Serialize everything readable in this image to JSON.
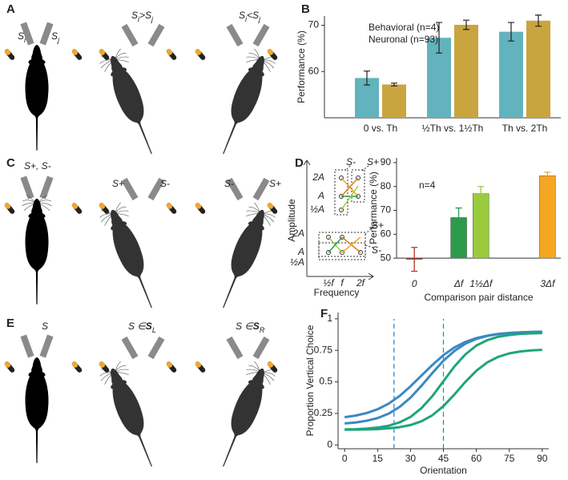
{
  "panel_labels": [
    "A",
    "B",
    "C",
    "D",
    "E",
    "F"
  ],
  "diagram_labels": [
    [
      {
        "text": "S"
      },
      {
        "text": "i",
        "sub": true
      }
    ],
    [
      {
        "text": "S"
      },
      {
        "text": "j",
        "sub": true
      }
    ],
    [
      {
        "text": "S"
      },
      {
        "text": "i",
        "sub": true
      },
      {
        "text": ">S"
      },
      {
        "text": "j",
        "sub": true
      }
    ],
    [
      {
        "text": "S"
      },
      {
        "text": "i",
        "sub": true
      },
      {
        "text": "<S"
      },
      {
        "text": "j",
        "sub": true
      }
    ],
    [
      {
        "text": "S+, S-"
      }
    ],
    [
      {
        "text": "S+"
      }
    ],
    [
      {
        "text": "S-"
      }
    ],
    [
      {
        "text": "S-"
      }
    ],
    [
      {
        "text": "S+"
      }
    ],
    [
      {
        "text": "S"
      }
    ],
    [
      {
        "text": "S ∈"
      },
      {
        "text": "S",
        "bold": true
      },
      {
        "text": "L",
        "sub": true
      }
    ],
    [
      {
        "text": "S ∈"
      },
      {
        "text": "S",
        "bold": true
      },
      {
        "text": "R",
        "sub": true
      }
    ]
  ],
  "schematic": {
    "y_label": "Amplitude",
    "x_label": "Frequency",
    "y_ticks_top": [
      "2A",
      "A",
      "½A"
    ],
    "y_ticks_bottom": [
      "2A",
      "A",
      "½A"
    ],
    "x_ticks": [
      "½f",
      "f",
      "2f"
    ],
    "top_labels": [
      "S-",
      "S+"
    ],
    "bottom_labels": [
      "S+",
      "S-"
    ]
  },
  "chart_data": [
    {
      "type": "bar",
      "y_label": "Performance (%)",
      "categories": [
        "0 vs. Th",
        "½Th vs. 1½Th",
        "Th vs. 2Th"
      ],
      "series": [
        {
          "name": "Behavioral (n=4)",
          "color": "#62b3bd",
          "values": [
            58.6,
            67.3,
            68.6
          ],
          "errors": [
            1.5,
            3.3,
            2.0
          ]
        },
        {
          "name": "Neuronal (n=93)",
          "color": "#c9a53f",
          "values": [
            57.2,
            70.1,
            71.0
          ],
          "errors": [
            0.3,
            1.0,
            1.2
          ]
        }
      ],
      "ylim": [
        50,
        72
      ],
      "yticks": [
        60,
        70
      ]
    },
    {
      "type": "bar",
      "y_label": "Performance (%)",
      "x_label": "Comparison pair distance",
      "annotation": "n=4",
      "x": [
        0,
        1,
        1.5,
        3
      ],
      "values": [
        49.5,
        67,
        77,
        84.5
      ],
      "errors": [
        5,
        4,
        3,
        1.5
      ],
      "colors": [
        "#b5342b",
        "#2e9a4c",
        "#9acb3d",
        "#f5a623"
      ],
      "bar_base": 50,
      "xlim": [
        -0.4,
        3.3
      ],
      "xticks": [
        0,
        {
          "value": 1,
          "label": "Δf"
        },
        {
          "value": 1.5,
          "label": "1½Δf"
        },
        {
          "value": 3,
          "label": "3Δf"
        }
      ],
      "ylim": [
        44,
        92
      ],
      "yticks": [
        50,
        60,
        70,
        80,
        90
      ]
    },
    {
      "type": "line",
      "y_label": "Proportion Vertical Choice",
      "x_label": "Orientation",
      "x": [
        0,
        5,
        10,
        15,
        20,
        25,
        30,
        35,
        40,
        45,
        50,
        55,
        60,
        65,
        70,
        75,
        80,
        85,
        90
      ],
      "series": [
        {
          "color": "#3b88c2",
          "values": [
            0.22,
            0.233,
            0.253,
            0.283,
            0.327,
            0.388,
            0.465,
            0.55,
            0.635,
            0.712,
            0.773,
            0.817,
            0.847,
            0.867,
            0.88,
            0.887,
            0.892,
            0.895,
            0.897
          ]
        },
        {
          "color": "#3b88c2",
          "values": [
            0.171,
            0.178,
            0.192,
            0.213,
            0.248,
            0.301,
            0.375,
            0.469,
            0.571,
            0.668,
            0.745,
            0.803,
            0.841,
            0.865,
            0.879,
            0.888,
            0.893,
            0.896,
            0.898
          ]
        },
        {
          "color": "#1ea57b",
          "values": [
            0.123,
            0.125,
            0.13,
            0.138,
            0.152,
            0.179,
            0.222,
            0.292,
            0.388,
            0.505,
            0.622,
            0.718,
            0.788,
            0.831,
            0.858,
            0.872,
            0.881,
            0.885,
            0.887
          ]
        },
        {
          "color": "#1ea57b",
          "values": [
            0.121,
            0.122,
            0.123,
            0.126,
            0.132,
            0.141,
            0.158,
            0.188,
            0.236,
            0.308,
            0.4,
            0.5,
            0.588,
            0.655,
            0.699,
            0.726,
            0.741,
            0.75,
            0.754
          ]
        }
      ],
      "reference_lines": [
        {
          "x": 22.5,
          "color": "#3b88c2"
        },
        {
          "x": 45,
          "color": "#1ea57b"
        }
      ],
      "xlim": [
        -3,
        93
      ],
      "xticks": [
        0,
        15,
        30,
        45,
        60,
        75,
        90
      ],
      "ylim": [
        -0.03,
        1.05
      ],
      "yticks": [
        0,
        0.25,
        0.5,
        0.75,
        1
      ]
    }
  ]
}
